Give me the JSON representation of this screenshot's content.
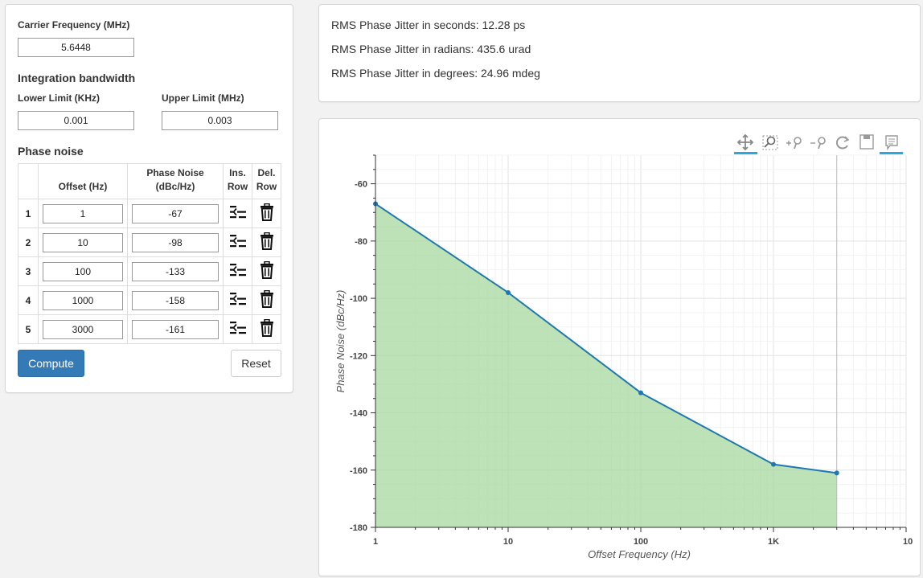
{
  "carrier": {
    "label": "Carrier Frequency (MHz)",
    "value": "5.6448"
  },
  "integration": {
    "heading": "Integration bandwidth",
    "lower_label": "Lower Limit (KHz)",
    "lower_value": "0.001",
    "upper_label": "Upper Limit (MHz)",
    "upper_value": "0.003"
  },
  "phase_noise": {
    "heading": "Phase noise",
    "headers": {
      "offset": "Offset (Hz)",
      "noise_1": "Phase Noise",
      "noise_2": "(dBc/Hz)",
      "ins_1": "Ins.",
      "ins_2": "Row",
      "del_1": "Del.",
      "del_2": "Row"
    },
    "rows": [
      {
        "index": "1",
        "offset": "1",
        "noise": "-67"
      },
      {
        "index": "2",
        "offset": "10",
        "noise": "-98"
      },
      {
        "index": "3",
        "offset": "100",
        "noise": "-133"
      },
      {
        "index": "4",
        "offset": "1000",
        "noise": "-158"
      },
      {
        "index": "5",
        "offset": "3000",
        "noise": "-161"
      }
    ]
  },
  "buttons": {
    "compute": "Compute",
    "reset": "Reset"
  },
  "results": {
    "seconds": "RMS Phase Jitter in seconds: 12.28 ps",
    "radians": "RMS Phase Jitter in radians: 435.6 urad",
    "degrees": "RMS Phase Jitter in degrees: 24.96 mdeg"
  },
  "toolbar": {
    "tools": [
      "pan-icon",
      "box-zoom-icon",
      "zoom-in-icon",
      "zoom-out-icon",
      "reset-icon",
      "save-icon",
      "hover-icon"
    ],
    "active_color": "#26aae1"
  },
  "chart_data": {
    "type": "area",
    "x_scale": "log",
    "x": [
      1,
      10,
      100,
      1000,
      3000
    ],
    "y": [
      -67,
      -98,
      -133,
      -158,
      -161
    ],
    "xlabel": "Offset Frequency (Hz)",
    "ylabel": "Phase Noise (dBc/Hz)",
    "xlim": [
      1,
      10000
    ],
    "ylim": [
      -180,
      -50
    ],
    "x_ticks": [
      "1",
      "10",
      "100",
      "1K",
      "10"
    ],
    "y_ticks": [
      "-60",
      "-80",
      "-100",
      "-120",
      "-140",
      "-160",
      "-180"
    ],
    "y_tick_values": [
      -60,
      -80,
      -100,
      -120,
      -140,
      -160,
      -180
    ],
    "line_color": "#1f77b4",
    "fill_color": "#a8d8a0",
    "grid": true
  }
}
